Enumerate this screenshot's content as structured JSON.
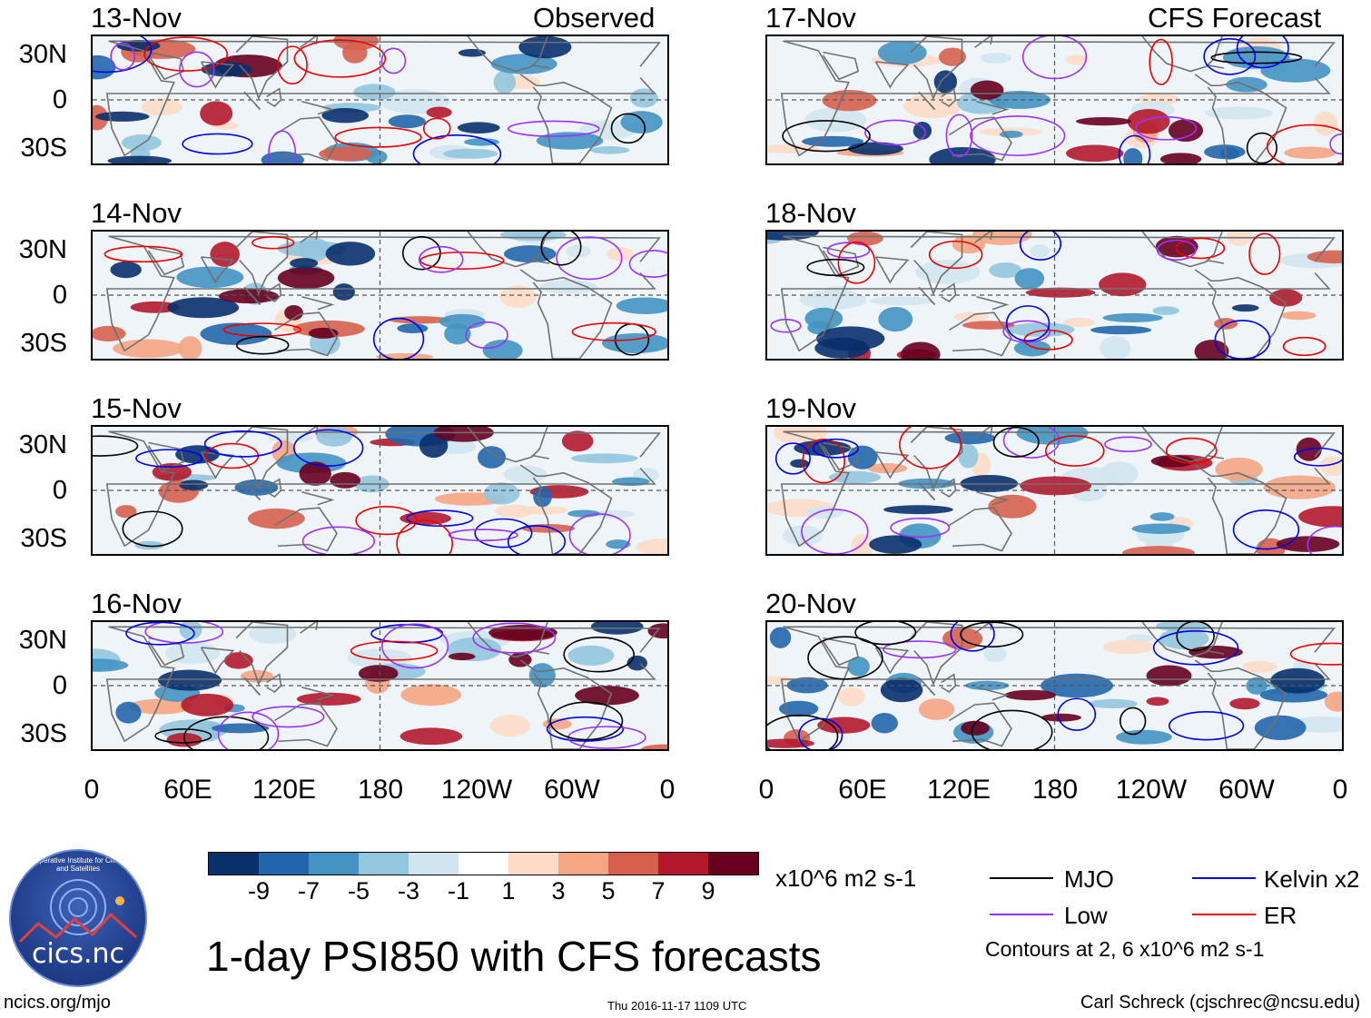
{
  "columns": {
    "observed_label": "Observed",
    "forecast_label": "CFS Forecast"
  },
  "panels": [
    {
      "date": "13-Nov",
      "column": "observed"
    },
    {
      "date": "14-Nov",
      "column": "observed"
    },
    {
      "date": "15-Nov",
      "column": "observed"
    },
    {
      "date": "16-Nov",
      "column": "observed"
    },
    {
      "date": "17-Nov",
      "column": "forecast"
    },
    {
      "date": "18-Nov",
      "column": "forecast"
    },
    {
      "date": "19-Nov",
      "column": "forecast"
    },
    {
      "date": "20-Nov",
      "column": "forecast"
    }
  ],
  "lat_labels": [
    "30N",
    "0",
    "30S"
  ],
  "lon_labels": [
    "0",
    "60E",
    "120E",
    "180",
    "120W",
    "60W",
    "0"
  ],
  "colorbar": {
    "colors": [
      "#08306b",
      "#2166ac",
      "#4393c3",
      "#92c5de",
      "#d1e5f0",
      "#ffffff",
      "#fddbc7",
      "#f4a582",
      "#d6604d",
      "#b2182b",
      "#67001f"
    ],
    "ticks": [
      "-9",
      "-7",
      "-5",
      "-3",
      "-1",
      "1",
      "3",
      "5",
      "7",
      "9"
    ],
    "units": "x10^6 m2 s-1"
  },
  "legend": {
    "items": [
      {
        "label": "MJO",
        "color": "#000000"
      },
      {
        "label": "Kelvin x2",
        "color": "#0000ee"
      },
      {
        "label": "Low",
        "color": "#9b30ff"
      },
      {
        "label": "ER",
        "color": "#ee0000"
      }
    ],
    "contour_note": "Contours at 2, 6 x10^6 m2 s-1"
  },
  "title": "1-day PSI850 with CFS forecasts",
  "logo_text": "cics.nc",
  "logo_ring_text": "Cooperative Institute for Climate and Satellites",
  "footer": {
    "url": "ncics.org/mjo",
    "timestamp": "Thu 2016-11-17 1109 UTC",
    "credit": "Carl Schreck (cjschrec@ncsu.edu)"
  }
}
